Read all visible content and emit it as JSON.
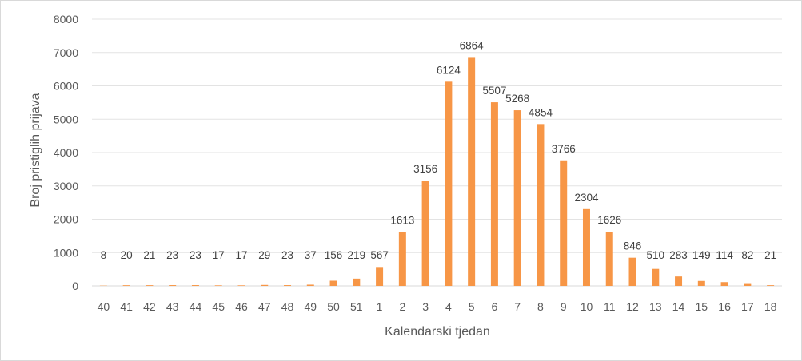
{
  "chart_data": {
    "type": "bar",
    "title": "",
    "xlabel": "Kalendarski tjedan",
    "ylabel": "Broj pristiglih prijava",
    "ylim": [
      0,
      8000
    ],
    "yticks": [
      0,
      1000,
      2000,
      3000,
      4000,
      5000,
      6000,
      7000,
      8000
    ],
    "grid": "horizontal",
    "legend": "none",
    "bar_color": "#f79646",
    "categories": [
      "40",
      "41",
      "42",
      "43",
      "44",
      "45",
      "46",
      "47",
      "48",
      "49",
      "50",
      "51",
      "1",
      "2",
      "3",
      "4",
      "5",
      "6",
      "7",
      "8",
      "9",
      "10",
      "11",
      "12",
      "13",
      "14",
      "15",
      "16",
      "17",
      "18"
    ],
    "values": [
      8,
      20,
      21,
      23,
      23,
      17,
      17,
      29,
      23,
      37,
      156,
      219,
      567,
      1613,
      3156,
      6124,
      6864,
      5507,
      5268,
      4854,
      3766,
      2304,
      1626,
      846,
      510,
      283,
      149,
      114,
      82,
      21
    ],
    "data_labels": true
  }
}
